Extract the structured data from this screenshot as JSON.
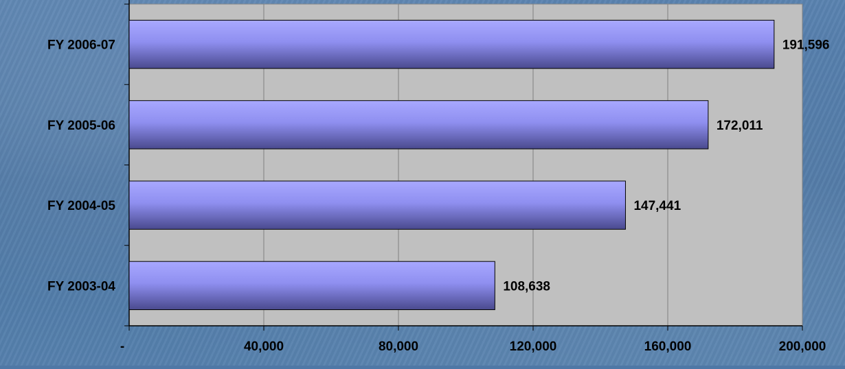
{
  "chart_data": {
    "type": "bar",
    "orientation": "horizontal",
    "title": "",
    "xlabel": "",
    "ylabel": "",
    "categories": [
      "FY 2003-04",
      "FY 2004-05",
      "FY 2005-06",
      "FY 2006-07"
    ],
    "values": [
      108638,
      147441,
      172011,
      191596
    ],
    "value_labels": [
      "108,638",
      "147,441",
      "172,011",
      "191,596"
    ],
    "xlim": [
      0,
      200000
    ],
    "x_ticks": [
      0,
      40000,
      80000,
      120000,
      160000,
      200000
    ],
    "x_tick_labels": [
      "-",
      "40,000",
      "80,000",
      "120,000",
      "160,000",
      "200,000"
    ],
    "grid": "vertical",
    "legend": "none",
    "colors": {
      "plot_background": "#c0c0c0",
      "bar_light": "#a8a8ff",
      "bar_mid": "#8f8ff0",
      "bar_dark": "#4a4a8e",
      "text": "#000000"
    }
  }
}
